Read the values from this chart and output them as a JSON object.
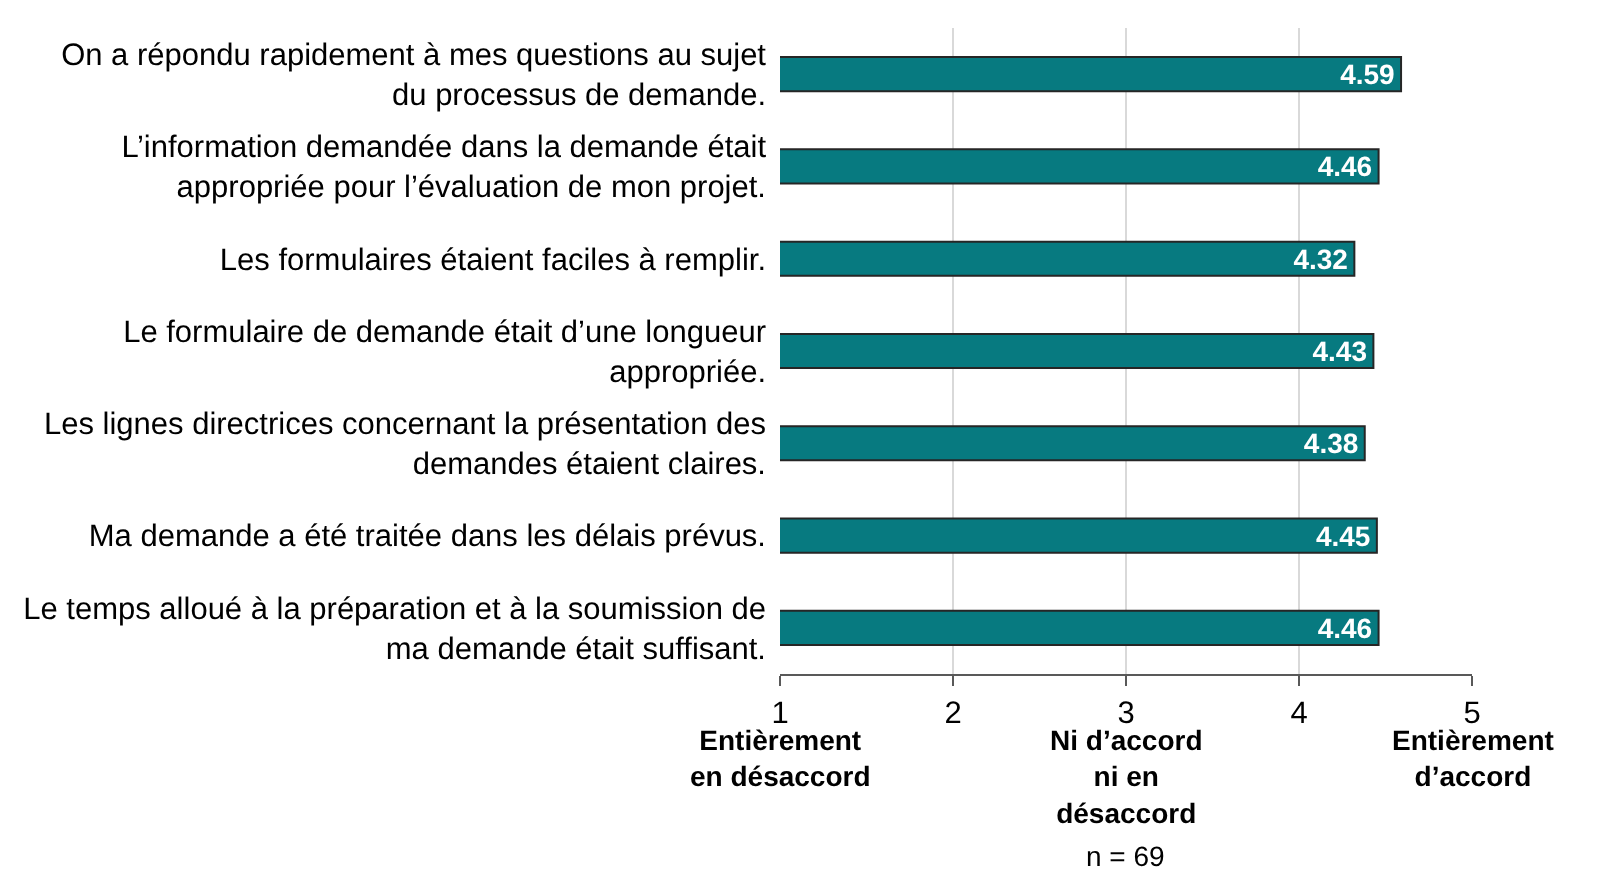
{
  "chart_data": {
    "type": "bar",
    "orientation": "horizontal",
    "categories": [
      "On a répondu rapidement à mes questions au sujet du processus de demande.",
      "L’information demandée dans la demande était appropriée pour l’évaluation de mon projet.",
      "Les formulaires étaient faciles à remplir.",
      "Le formulaire de demande était d’une longueur appropriée.",
      "Les lignes directrices concernant la présentation des demandes étaient claires.",
      "Ma demande a été traitée dans les délais prévus.",
      "Le temps alloué à la préparation et à la soumission de ma demande était suffisant."
    ],
    "values": [
      4.59,
      4.46,
      4.32,
      4.43,
      4.38,
      4.45,
      4.46
    ],
    "color": "#077a80",
    "xlim": [
      1,
      5
    ],
    "xticks": [
      1,
      2,
      3,
      4,
      5
    ],
    "grid": "x",
    "data_labels": true,
    "annotations": [
      "Entièrement en désaccord",
      "Ni d’accord ni en désaccord",
      "Entièrement d’accord",
      "n = 69"
    ]
  }
}
